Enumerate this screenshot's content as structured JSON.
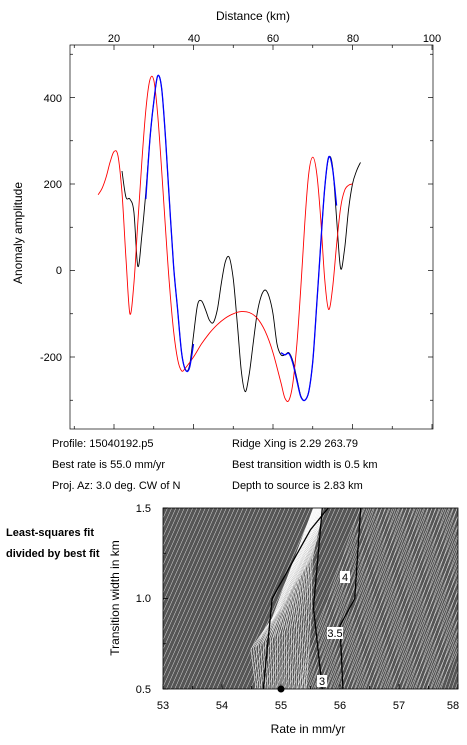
{
  "chart_data": [
    {
      "type": "line",
      "xlabel": "Distance (km)",
      "ylabel": "Anomaly amplitude",
      "xlim": [
        10,
        100
      ],
      "ylim": [
        -320,
        520
      ],
      "x_ticks": [
        "20",
        "40",
        "60",
        "80",
        "100"
      ],
      "y_ticks": [
        "400",
        "200",
        "0",
        "-200"
      ],
      "grid": false,
      "series": [
        {
          "color": "#000000",
          "points": [
            [
              22,
              230
            ],
            [
              23,
              170
            ],
            [
              24,
              165
            ],
            [
              25,
              135
            ],
            [
              26,
              10
            ],
            [
              27,
              80
            ],
            [
              28,
              180
            ],
            [
              29,
              300
            ],
            [
              30,
              390
            ],
            [
              31,
              450
            ],
            [
              32,
              420
            ],
            [
              33,
              300
            ],
            [
              34,
              150
            ],
            [
              35,
              10
            ],
            [
              36,
              -90
            ],
            [
              37,
              -190
            ],
            [
              38,
              -230
            ],
            [
              39,
              -220
            ],
            [
              40,
              -150
            ],
            [
              41,
              -80
            ],
            [
              42,
              -70
            ],
            [
              43,
              -90
            ],
            [
              44,
              -115
            ],
            [
              45,
              -120
            ],
            [
              46,
              -90
            ],
            [
              47,
              -30
            ],
            [
              48,
              20
            ],
            [
              49,
              30
            ],
            [
              50,
              -20
            ],
            [
              51,
              -120
            ],
            [
              52,
              -230
            ],
            [
              53,
              -280
            ],
            [
              54,
              -240
            ],
            [
              55,
              -170
            ],
            [
              56,
              -100
            ],
            [
              57,
              -60
            ],
            [
              58,
              -45
            ],
            [
              59,
              -60
            ],
            [
              60,
              -100
            ],
            [
              61,
              -170
            ],
            [
              62,
              -195
            ],
            [
              63,
              -195
            ],
            [
              64,
              -190
            ],
            [
              65,
              -210
            ],
            [
              66,
              -250
            ],
            [
              67,
              -290
            ],
            [
              68,
              -300
            ],
            [
              69,
              -280
            ],
            [
              70,
              -210
            ],
            [
              71,
              -80
            ],
            [
              72,
              60
            ],
            [
              73,
              190
            ],
            [
              74,
              260
            ],
            [
              75,
              240
            ],
            [
              76,
              120
            ],
            [
              77,
              5
            ],
            [
              78,
              50
            ],
            [
              79,
              140
            ],
            [
              80,
              200
            ],
            [
              81,
              230
            ],
            [
              82,
              250
            ]
          ]
        },
        {
          "color": "#ff0000",
          "points": [
            [
              16,
              175
            ],
            [
              17,
              190
            ],
            [
              18,
              215
            ],
            [
              19,
              250
            ],
            [
              20,
              275
            ],
            [
              21,
              265
            ],
            [
              22,
              180
            ],
            [
              23,
              30
            ],
            [
              24,
              -100
            ],
            [
              25,
              -30
            ],
            [
              26,
              110
            ],
            [
              27,
              250
            ],
            [
              28,
              370
            ],
            [
              29,
              440
            ],
            [
              30,
              440
            ],
            [
              31,
              360
            ],
            [
              32,
              230
            ],
            [
              33,
              90
            ],
            [
              34,
              -40
            ],
            [
              35,
              -140
            ],
            [
              36,
              -205
            ],
            [
              37,
              -232
            ],
            [
              38,
              -225
            ],
            [
              40,
              -200
            ],
            [
              42,
              -170
            ],
            [
              44,
              -145
            ],
            [
              46,
              -125
            ],
            [
              48,
              -110
            ],
            [
              50,
              -100
            ],
            [
              52,
              -95
            ],
            [
              54,
              -97
            ],
            [
              56,
              -110
            ],
            [
              58,
              -140
            ],
            [
              60,
              -190
            ],
            [
              62,
              -260
            ],
            [
              63,
              -295
            ],
            [
              64,
              -300
            ],
            [
              65,
              -260
            ],
            [
              66,
              -170
            ],
            [
              67,
              -40
            ],
            [
              68,
              110
            ],
            [
              69,
              225
            ],
            [
              70,
              262
            ],
            [
              71,
              225
            ],
            [
              72,
              120
            ],
            [
              73,
              -20
            ],
            [
              74,
              -90
            ],
            [
              75,
              -40
            ],
            [
              76,
              60
            ],
            [
              77,
              145
            ],
            [
              78,
              185
            ],
            [
              79,
              197
            ],
            [
              80,
              200
            ]
          ]
        },
        {
          "color": "#0000ff",
          "points": [
            [
              28,
              165
            ],
            [
              29,
              300
            ],
            [
              30,
              390
            ],
            [
              31,
              450
            ],
            [
              32,
              420
            ],
            [
              33,
              300
            ],
            [
              34,
              150
            ],
            [
              35,
              10
            ],
            [
              36,
              -90
            ],
            [
              37,
              -190
            ],
            [
              38,
              -230
            ],
            [
              39,
              -225
            ],
            [
              40,
              -170
            ]
          ]
        },
        {
          "color": "#0000ff",
          "points": [
            [
              62,
              -190
            ],
            [
              63,
              -195
            ],
            [
              64,
              -192
            ],
            [
              65,
              -215
            ],
            [
              66,
              -255
            ],
            [
              67,
              -292
            ],
            [
              68,
              -300
            ],
            [
              69,
              -280
            ],
            [
              70,
              -210
            ],
            [
              71,
              -80
            ],
            [
              72,
              60
            ],
            [
              73,
              190
            ],
            [
              74,
              262
            ],
            [
              75,
              235
            ],
            [
              76,
              150
            ]
          ]
        }
      ]
    },
    {
      "type": "heatmap",
      "xlabel": "Rate in mm/yr",
      "ylabel": "Transition width in km",
      "xlim": [
        53,
        58
      ],
      "ylim": [
        0.5,
        1.5
      ],
      "x_ticks": [
        "53",
        "54",
        "55",
        "56",
        "57",
        "58"
      ],
      "y_ticks": [
        "1.5",
        "1.0",
        "0.5"
      ],
      "contour_labels": [
        {
          "text": "4",
          "x": 56.25,
          "y": 1.08
        },
        {
          "text": "3.5",
          "x": 56.35,
          "y": 0.85
        },
        {
          "text": "3",
          "x": 56.1,
          "y": 0.54
        }
      ],
      "best_fit": {
        "x": 55.0,
        "y": 0.5
      }
    }
  ],
  "info": {
    "profile": "Profile: 15040192.p5",
    "best_rate": "Best rate is 55.0 mm/yr",
    "proj_az": "Proj. Az: 3.0 deg. CW of N",
    "ridge_xing": "Ridge Xing is 2.29 263.79",
    "best_transition": "Best transition width is 0.5 km",
    "depth": "Depth to source is    2.83 km"
  },
  "side_note": "Least-squares fit divided by best fit"
}
